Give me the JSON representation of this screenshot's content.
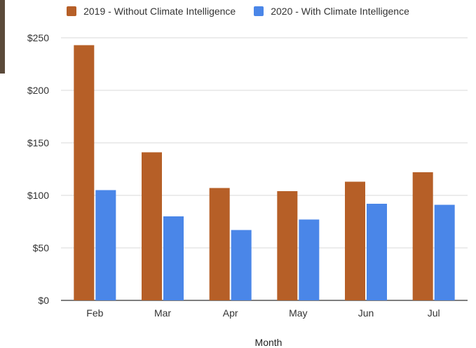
{
  "chart_data": {
    "type": "bar",
    "title": "",
    "xlabel": "Month",
    "ylabel": "",
    "categories": [
      "Feb",
      "Mar",
      "Apr",
      "May",
      "Jun",
      "Jul"
    ],
    "series": [
      {
        "name": "2019 - Without Climate Intelligence",
        "color": "#b65f27",
        "values": [
          243,
          141,
          107,
          104,
          113,
          122
        ]
      },
      {
        "name": "2020 - With Climate Intelligence",
        "color": "#4a86e8",
        "values": [
          105,
          80,
          67,
          77,
          92,
          91
        ]
      }
    ],
    "ylim": [
      0,
      250
    ],
    "yticks": [
      0,
      50,
      100,
      150,
      200,
      250
    ],
    "ytick_labels": [
      "$0",
      "$50",
      "$100",
      "$150",
      "$200",
      "$250"
    ],
    "grid": true,
    "legend_position": "top"
  }
}
